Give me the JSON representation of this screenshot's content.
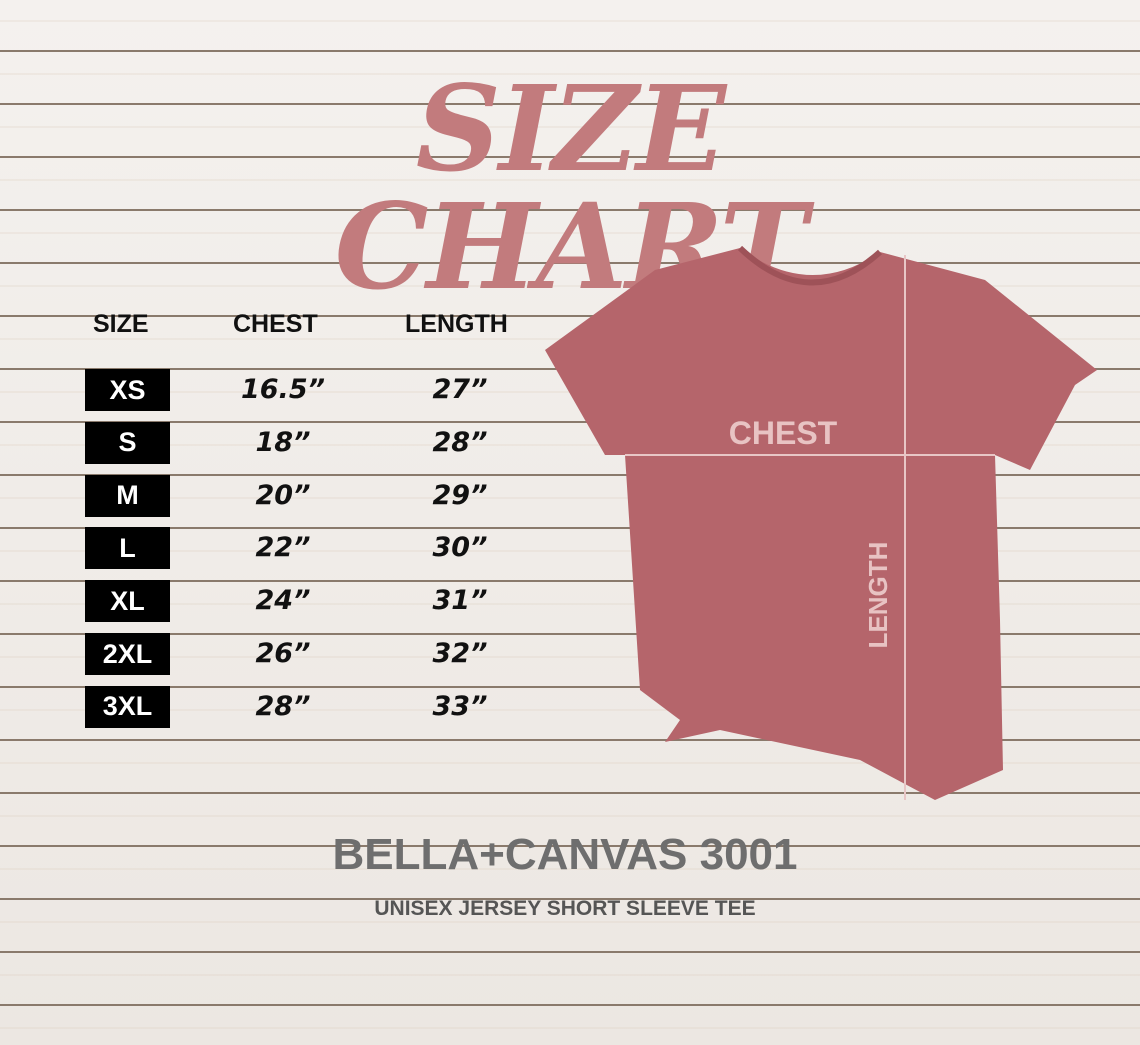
{
  "title": "SIZE CHART",
  "table": {
    "headers": [
      "SIZE",
      "CHEST",
      "LENGTH"
    ],
    "rows": [
      {
        "size": "XS",
        "chest": "16.5”",
        "length": "27”"
      },
      {
        "size": "S",
        "chest": "18”",
        "length": "28”"
      },
      {
        "size": "M",
        "chest": "20”",
        "length": "29”"
      },
      {
        "size": "L",
        "chest": "22”",
        "length": "30”"
      },
      {
        "size": "XL",
        "chest": "24”",
        "length": "31”"
      },
      {
        "size": "2XL",
        "chest": "26”",
        "length": "32”"
      },
      {
        "size": "3XL",
        "chest": "28”",
        "length": "33”"
      }
    ]
  },
  "diagram": {
    "chest_label": "CHEST",
    "length_label": "LENGTH",
    "shirt_color": "#b5656b",
    "title_color": "#c27b7d"
  },
  "brand": "BELLA+CANVAS 3001",
  "product": "UNISEX JERSEY SHORT SLEEVE TEE"
}
